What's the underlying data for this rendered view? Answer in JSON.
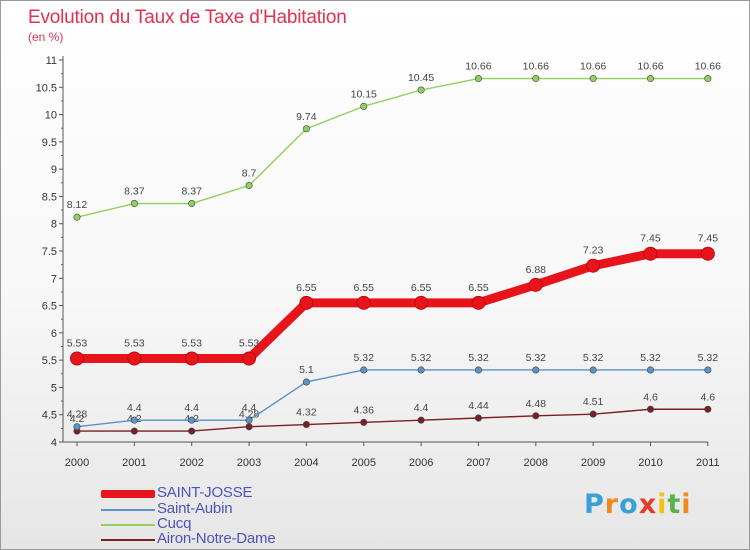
{
  "title": "Evolution du Taux de Taxe d'Habitation",
  "subtitle": "(en %)",
  "logo": {
    "text": "Proxiti",
    "letters": [
      "P",
      "r",
      "o",
      "x",
      "i",
      "t",
      "i"
    ],
    "colors": [
      "#3aa0d8",
      "#f08a1c",
      "#3aa0d8",
      "#e53a2c",
      "#f2c21a",
      "#5ab34a",
      "#f08a1c"
    ]
  },
  "chart_data": {
    "type": "line",
    "title": "Evolution du Taux de Taxe d'Habitation",
    "ylabel": "(en %)",
    "xlabel": "",
    "categories": [
      "2000",
      "2001",
      "2002",
      "2003",
      "2004",
      "2005",
      "2006",
      "2007",
      "2008",
      "2009",
      "2010",
      "2011"
    ],
    "ylim": [
      4,
      11
    ],
    "yticks": [
      "4",
      "4.5",
      "5",
      "5.5",
      "6",
      "6.5",
      "7",
      "7.5",
      "8",
      "8.5",
      "9",
      "9.5",
      "10",
      "10.5",
      "11"
    ],
    "grid": false,
    "legend_position": "bottom-left",
    "series": [
      {
        "name": "SAINT-JOSSE",
        "color": "#e8141b",
        "values": [
          5.53,
          5.53,
          5.53,
          5.53,
          6.55,
          6.55,
          6.55,
          6.55,
          6.88,
          7.23,
          7.45,
          7.45
        ],
        "labels": [
          "5.53",
          "5.53",
          "5.53",
          "5.53",
          "6.55",
          "6.55",
          "6.55",
          "6.55",
          "6.88",
          "7.23",
          "7.45",
          "7.45"
        ]
      },
      {
        "name": "Saint-Aubin",
        "color": "#5a93c8",
        "values": [
          4.28,
          4.4,
          4.4,
          4.4,
          5.1,
          5.32,
          5.32,
          5.32,
          5.32,
          5.32,
          5.32,
          5.32
        ],
        "labels": [
          "4.28",
          "4.4",
          "4.4",
          "4.4",
          "5.1",
          "5.32",
          "5.32",
          "5.32",
          "5.32",
          "5.32",
          "5.32",
          "5.32"
        ]
      },
      {
        "name": "Cucq",
        "color": "#8fd15c",
        "values": [
          8.12,
          8.37,
          8.37,
          8.7,
          9.74,
          10.15,
          10.45,
          10.66,
          10.66,
          10.66,
          10.66,
          10.66
        ],
        "labels": [
          "8.12",
          "8.37",
          "8.37",
          "8.7",
          "9.74",
          "10.15",
          "10.45",
          "10.66",
          "10.66",
          "10.66",
          "10.66",
          "10.66"
        ]
      },
      {
        "name": "Airon-Notre-Dame",
        "color": "#7a1f24",
        "values": [
          4.2,
          4.2,
          4.2,
          4.28,
          4.32,
          4.36,
          4.4,
          4.44,
          4.48,
          4.51,
          4.6,
          4.6
        ],
        "labels": [
          "4.2",
          "4.2",
          "4.2",
          "4.28",
          "4.32",
          "4.36",
          "4.4",
          "4.44",
          "4.48",
          "4.51",
          "4.6",
          "4.6"
        ]
      }
    ]
  }
}
